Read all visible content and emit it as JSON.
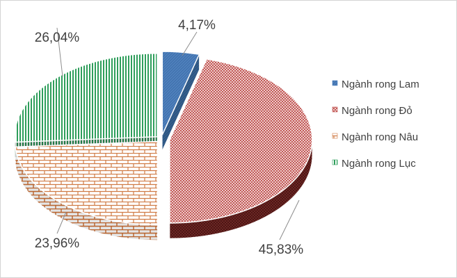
{
  "chart_data": {
    "type": "pie",
    "title": "",
    "categories": [
      "Ngành rong Lam",
      "Ngành  rong Đỏ",
      "Ngành rong Nâu",
      "Ngành  rong Lục"
    ],
    "values": [
      4.17,
      45.83,
      23.96,
      26.04
    ],
    "labels": [
      "4,17%",
      "45,83%",
      "23,96%",
      "26,04%"
    ],
    "colors": [
      "#4f81bd",
      "#c0504d",
      "#d07b45",
      "#2e9e5b"
    ],
    "exploded": true,
    "three_d": true,
    "legend_position": "right"
  }
}
